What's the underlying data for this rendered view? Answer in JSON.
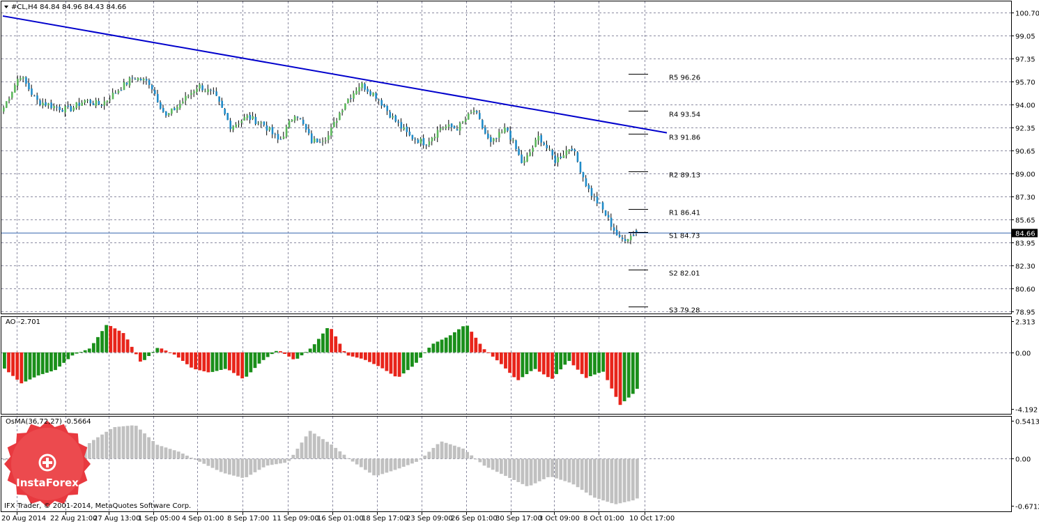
{
  "chart_header": {
    "symbol_line": "#CL,H4  84.84 84.96 84.43 84.66"
  },
  "chart_data": [
    {
      "type": "candlestick",
      "symbol": "#CL",
      "timeframe": "H4",
      "ohlc_last": {
        "open": 84.84,
        "high": 84.96,
        "low": 84.43,
        "close": 84.66
      },
      "current_price": "84.66",
      "y_ticks": [
        "100.70",
        "99.05",
        "97.35",
        "95.70",
        "94.00",
        "92.35",
        "90.65",
        "89.00",
        "87.30",
        "85.65",
        "83.95",
        "82.30",
        "80.60",
        "78.95"
      ],
      "ylim": [
        78.95,
        100.7
      ],
      "x_ticks": [
        "20 Aug 2014",
        "22 Aug 21:00",
        "27 Aug 13:00",
        "1 Sep 05:00",
        "4 Sep 01:00",
        "8 Sep 17:00",
        "11 Sep 09:00",
        "16 Sep 01:00",
        "18 Sep 17:00",
        "23 Sep 09:00",
        "26 Sep 01:00",
        "30 Sep 17:00",
        "3 Oct 09:00",
        "8 Oct 01:00",
        "10 Oct 17:00"
      ],
      "pivot_levels": [
        {
          "label": "R5 96.26",
          "value": 96.26
        },
        {
          "label": "R4 93.54",
          "value": 93.54
        },
        {
          "label": "R3 91.86",
          "value": 91.86
        },
        {
          "label": "R2 89.13",
          "value": 89.13
        },
        {
          "label": "R1 86.41",
          "value": 86.41
        },
        {
          "label": "S1 84.73",
          "value": 84.73
        },
        {
          "label": "S2 82.01",
          "value": 82.01
        },
        {
          "label": "S3 79.28",
          "value": 79.28
        }
      ],
      "trendline": {
        "from": {
          "x": "20 Aug 2014",
          "y": 100.45
        },
        "to": {
          "x": "10 Oct 17:00",
          "y": 91.95
        },
        "color": "#0000cc"
      },
      "close_anchors": [
        93.8,
        96.2,
        94.3,
        93.9,
        93.6,
        94.3,
        94.0,
        95.0,
        96.0,
        95.6,
        93.1,
        94.2,
        95.4,
        94.7,
        92.4,
        93.1,
        92.6,
        91.3,
        93.5,
        91.3,
        91.7,
        94.1,
        95.5,
        94.6,
        93.0,
        91.7,
        91.2,
        92.4,
        92.3,
        93.6,
        91.1,
        92.3,
        89.6,
        91.7,
        89.9,
        91.0,
        87.9,
        86.2,
        84.1,
        84.66
      ],
      "colors": {
        "up": "#5cb85c",
        "down": "#1f8bc8"
      }
    },
    {
      "type": "histogram",
      "title": "AO -2.701",
      "y_ticks": [
        "2.313",
        "0.00",
        "-4.192"
      ],
      "ylim": [
        -4.192,
        2.313
      ],
      "last_value": -2.701,
      "anchors": [
        -1.2,
        -2.3,
        -1.7,
        -1.3,
        -0.2,
        0.3,
        2.1,
        1.4,
        -0.8,
        0.4,
        -0.2,
        -1.2,
        -1.5,
        -1.2,
        -2.0,
        -0.7,
        0.2,
        -0.6,
        0.4,
        2.0,
        -0.2,
        -0.5,
        -1.1,
        -1.9,
        -0.9,
        0.6,
        1.2,
        2.1,
        0.3,
        -0.8,
        -2.1,
        -1.2,
        -2.0,
        -0.6,
        -1.9,
        -1.4,
        -3.9,
        -2.8
      ],
      "colors": {
        "up": "#1a8f1a",
        "down": "#e8241a"
      }
    },
    {
      "type": "histogram",
      "title": "OsMA(36,72,27) -0.5664",
      "y_ticks": [
        "0.5413",
        "0.00",
        "-0.6712"
      ],
      "ylim": [
        -0.6712,
        0.5413
      ],
      "last_value": -0.5664,
      "anchors": [
        -0.02,
        0.02,
        -0.04,
        0.0,
        0.25,
        0.45,
        0.48,
        0.2,
        0.1,
        -0.05,
        -0.2,
        -0.28,
        -0.1,
        -0.05,
        0.4,
        0.2,
        -0.05,
        -0.25,
        -0.15,
        -0.03,
        0.25,
        0.15,
        -0.1,
        -0.25,
        -0.4,
        -0.25,
        -0.35,
        -0.55,
        -0.65,
        -0.58
      ],
      "color": "#c0c0c0"
    }
  ],
  "footer": {
    "copyright": "IFX Trader, © 2001-2014, MetaQuotes Software Corp."
  },
  "watermark": {
    "brand": "InstaForex"
  }
}
